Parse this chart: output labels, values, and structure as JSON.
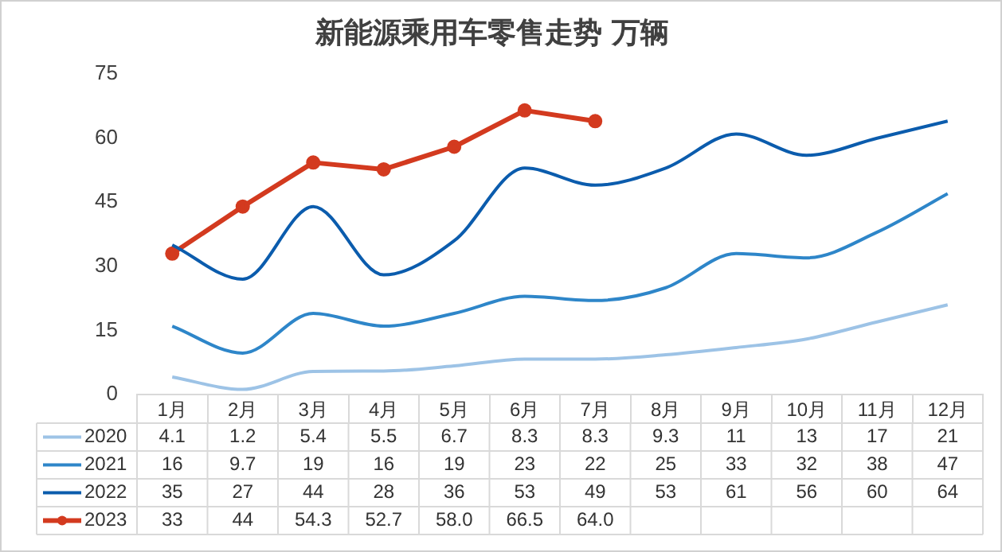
{
  "chart_data": {
    "type": "line",
    "title": "新能源乘用车零售走势 万辆",
    "categories": [
      "1月",
      "2月",
      "3月",
      "4月",
      "5月",
      "6月",
      "7月",
      "8月",
      "9月",
      "10月",
      "11月",
      "12月"
    ],
    "series": [
      {
        "name": "2020",
        "color": "#9dc3e6",
        "marker": "none",
        "values": [
          4.1,
          1.2,
          5.4,
          5.5,
          6.7,
          8.3,
          8.3,
          9.3,
          11,
          13,
          17,
          21
        ]
      },
      {
        "name": "2021",
        "color": "#2e86c9",
        "marker": "none",
        "values": [
          16,
          9.7,
          19,
          16,
          19,
          23,
          22,
          25,
          33,
          32,
          38,
          47
        ]
      },
      {
        "name": "2022",
        "color": "#0b5cad",
        "marker": "none",
        "values": [
          35,
          27,
          44,
          28,
          36,
          53,
          49,
          53,
          61,
          56,
          60,
          64
        ]
      },
      {
        "name": "2023",
        "color": "#d33a1f",
        "marker": "circle",
        "value_labels": [
          "33",
          "44",
          "54.3",
          "52.7",
          "58.0",
          "66.5",
          "64.0",
          null,
          null,
          null,
          null,
          null
        ],
        "values": [
          33,
          44,
          54.3,
          52.7,
          58.0,
          66.5,
          64.0,
          null,
          null,
          null,
          null,
          null
        ]
      }
    ],
    "ylim": [
      0,
      75
    ],
    "yticks": [
      0,
      15,
      30,
      45,
      60,
      75
    ],
    "grid": false,
    "legend": "bottom",
    "data_labels": true
  }
}
